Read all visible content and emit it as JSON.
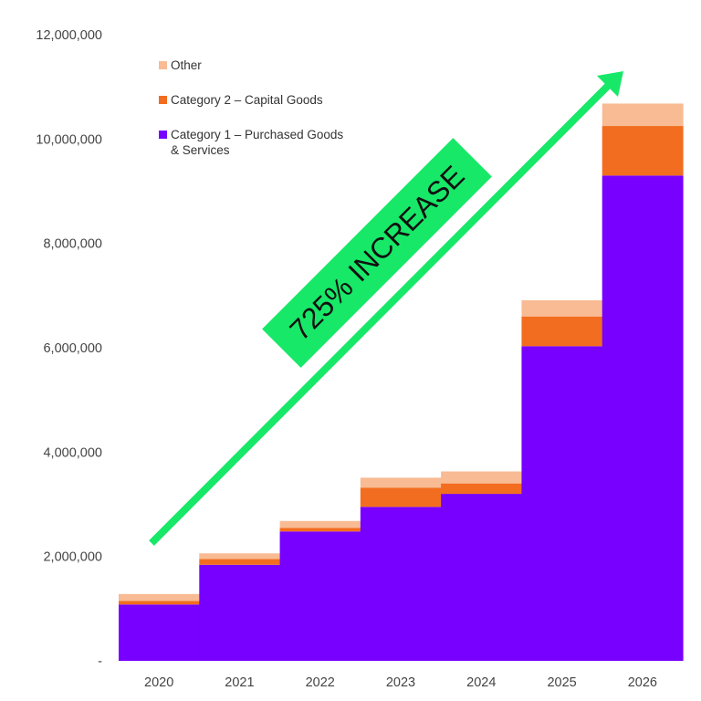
{
  "chart_data": {
    "type": "area",
    "step": true,
    "stacked": true,
    "categories": [
      "2020",
      "2021",
      "2022",
      "2023",
      "2024",
      "2025",
      "2026"
    ],
    "series": [
      {
        "name": "Category 1 – Purchased Goods & Services",
        "color": "#7700ff",
        "values": [
          1080000,
          1840000,
          2480000,
          2950000,
          3200000,
          6030000,
          9300000
        ]
      },
      {
        "name": "Category 2 – Capital Goods",
        "color": "#f26d1f",
        "values": [
          70000,
          110000,
          70000,
          370000,
          200000,
          570000,
          950000
        ]
      },
      {
        "name": "Other",
        "color": "#f8bb93",
        "values": [
          130000,
          110000,
          130000,
          190000,
          230000,
          310000,
          430000
        ]
      }
    ],
    "ylim": [
      0,
      12000000
    ],
    "yticks": [
      {
        "value": 0,
        "label": "-"
      },
      {
        "value": 2000000,
        "label": "2,000,000"
      },
      {
        "value": 4000000,
        "label": "4,000,000"
      },
      {
        "value": 6000000,
        "label": "6,000,000"
      },
      {
        "value": 8000000,
        "label": "8,000,000"
      },
      {
        "value": 10000000,
        "label": "10,000,000"
      },
      {
        "value": 12000000,
        "label": "12,000,000"
      }
    ],
    "legend_placement": "top-left",
    "legend": [
      {
        "label": "Other",
        "color": "#f8bb93"
      },
      {
        "label": "Category 2 – Capital Goods",
        "color": "#f26d1f"
      },
      {
        "label": "Category 1 – Purchased Goods & Services",
        "color": "#7700ff"
      }
    ],
    "annotation": {
      "text": "725% INCREASE",
      "arrow_color": "#17e868",
      "box_color": "#17e868"
    },
    "grid": false
  }
}
